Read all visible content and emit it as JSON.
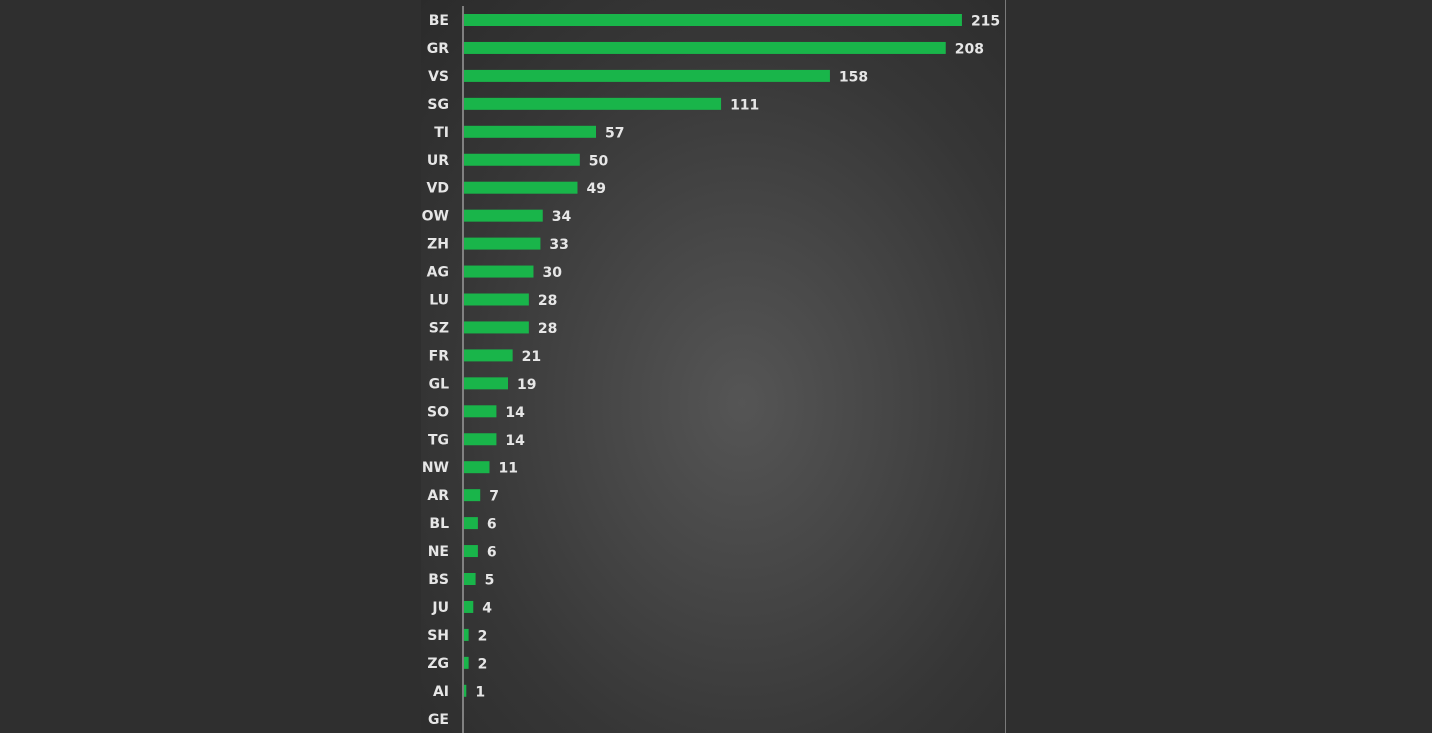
{
  "chart_data": {
    "type": "bar",
    "orientation": "horizontal",
    "categories": [
      "BE",
      "GR",
      "VS",
      "SG",
      "TI",
      "UR",
      "VD",
      "OW",
      "ZH",
      "AG",
      "LU",
      "SZ",
      "FR",
      "GL",
      "SO",
      "TG",
      "NW",
      "AR",
      "BL",
      "NE",
      "BS",
      "JU",
      "SH",
      "ZG",
      "AI",
      "GE"
    ],
    "values": [
      215,
      208,
      158,
      111,
      57,
      50,
      49,
      34,
      33,
      30,
      28,
      28,
      21,
      19,
      14,
      14,
      11,
      7,
      6,
      6,
      5,
      4,
      2,
      2,
      1,
      0
    ],
    "value_labels": [
      "215",
      "208",
      "158",
      "111",
      "57",
      "50",
      "49",
      "34",
      "33",
      "30",
      "28",
      "28",
      "21",
      "19",
      "14",
      "14",
      "11",
      "7",
      "6",
      "6",
      "5",
      "4",
      "2",
      "2",
      "1",
      ""
    ],
    "title": "",
    "xlabel": "",
    "ylabel": "",
    "grid": false,
    "legend": "none",
    "colors": {
      "bar": "#19b54a",
      "text": "#e6e6e6",
      "background": "#2f2f2f"
    }
  }
}
